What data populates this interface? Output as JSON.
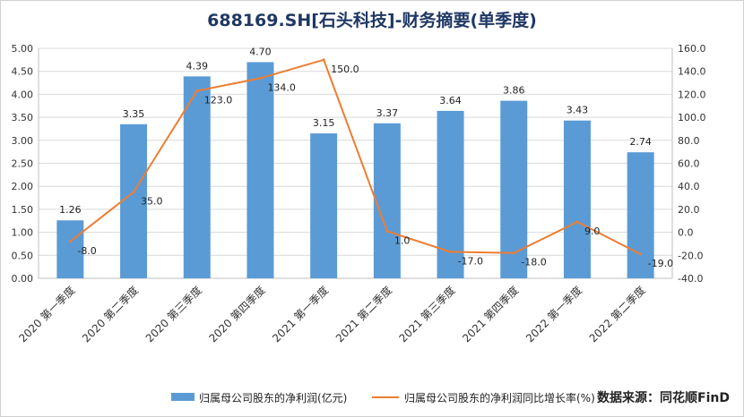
{
  "chart_data": {
    "type": "bar",
    "title": "688169.SH[石头科技]-财务摘要(单季度)",
    "categories": [
      "2020 第一季度",
      "2020 第二季度",
      "2020 第三季度",
      "2020 第四季度",
      "2021 第一季度",
      "2021 第二季度",
      "2021 第三季度",
      "2021 第四季度",
      "2022 第一季度",
      "2022 第二季度"
    ],
    "series": [
      {
        "name": "归属母公司股东的净利润(亿元)",
        "type": "bar",
        "axis": "left",
        "values": [
          1.26,
          3.35,
          4.39,
          4.7,
          3.15,
          3.37,
          3.64,
          3.86,
          3.43,
          2.74
        ],
        "labels": [
          "1.26",
          "3.35",
          "4.39",
          "4.70",
          "3.15",
          "3.37",
          "3.64",
          "3.86",
          "3.43",
          "2.74"
        ]
      },
      {
        "name": "归属母公司股东的净利润同比增长率(%)",
        "type": "line",
        "axis": "right",
        "values": [
          -8.0,
          35.0,
          123.0,
          134.0,
          150.0,
          1.0,
          -17.0,
          -18.0,
          9.0,
          -19.0
        ],
        "labels": [
          "-8.0",
          "35.0",
          "123.0",
          "134.0",
          "150.0",
          "1.0",
          "-17.0",
          "-18.0",
          "9.0",
          "-19.0"
        ]
      }
    ],
    "ylim": [
      0,
      5
    ],
    "y2lim": [
      -40,
      160
    ],
    "yticks": [
      "0.00",
      "0.50",
      "1.00",
      "1.50",
      "2.00",
      "2.50",
      "3.00",
      "3.50",
      "4.00",
      "4.50",
      "5.00"
    ],
    "y2ticks": [
      "-40.0",
      "-20.0",
      "0.0",
      "20.0",
      "40.0",
      "60.0",
      "80.0",
      "100.0",
      "120.0",
      "140.0",
      "160.0"
    ],
    "grid": "horizontal",
    "legend": "bottom",
    "colors": {
      "bar": "#5b9bd5",
      "line": "#ed7d31",
      "title": "#1f3864"
    }
  },
  "source_label": "数据来源：同花顺FinD"
}
